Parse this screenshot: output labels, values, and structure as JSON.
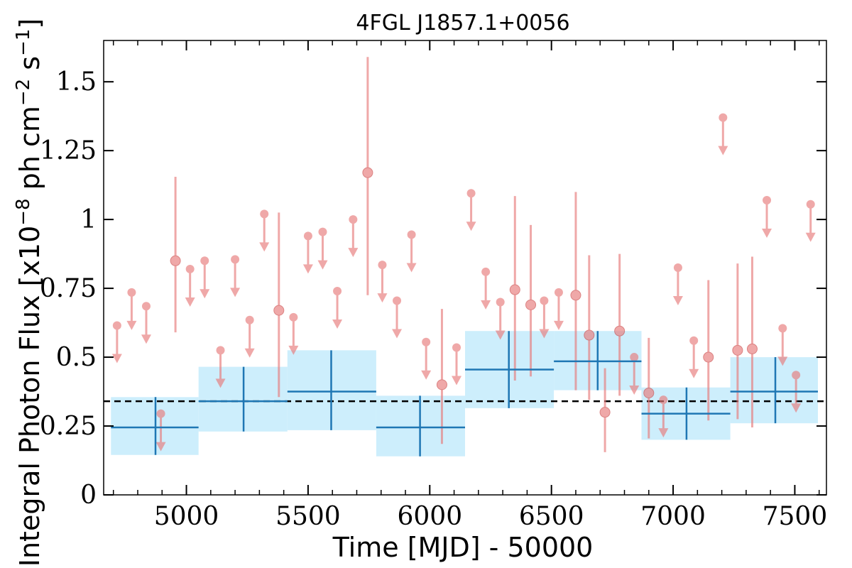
{
  "chart_data": {
    "type": "scatter",
    "title": "4FGL J1857.1+0056",
    "xlabel": "Time [MJD] - 50000",
    "ylabel_main": "Integral Photon Flux [x10",
    "ylabel_exp1": "−8",
    "ylabel_mid": " ph cm",
    "ylabel_exp2": "−2",
    "ylabel_mid2": " s",
    "ylabel_exp3": "−1",
    "ylabel_end": "]",
    "xlim": [
      4660,
      7630
    ],
    "ylim": [
      0,
      1.65
    ],
    "xticks": [
      5000,
      5500,
      6000,
      6500,
      7000,
      7500
    ],
    "xtick_labels": [
      "5000",
      "5500",
      "6000",
      "6500",
      "7000",
      "7500"
    ],
    "yticks": [
      0,
      0.25,
      0.5,
      0.75,
      1,
      1.25,
      1.5
    ],
    "ytick_labels": [
      "0",
      "0.25",
      "0.5",
      "0.75",
      "1",
      "1.25",
      "1.5"
    ],
    "mean_flux": 0.34,
    "colors": {
      "binned": "#1f77b4",
      "band": "#cdeefc",
      "points": "#e87b7b",
      "mean_line": "#000000"
    },
    "binned_series": [
      {
        "x": 4873,
        "x0": 4690,
        "x1": 5050,
        "y": 0.245,
        "ylo": 0.145,
        "yhi": 0.355,
        "band_lo": 0.145,
        "band_hi": 0.355
      },
      {
        "x": 5235,
        "x0": 5050,
        "x1": 5415,
        "y": 0.34,
        "ylo": 0.23,
        "yhi": 0.465,
        "band_lo": 0.23,
        "band_hi": 0.465
      },
      {
        "x": 5595,
        "x0": 5415,
        "x1": 5780,
        "y": 0.375,
        "ylo": 0.235,
        "yhi": 0.525,
        "band_lo": 0.235,
        "band_hi": 0.525
      },
      {
        "x": 5960,
        "x0": 5780,
        "x1": 6145,
        "y": 0.245,
        "ylo": 0.14,
        "yhi": 0.36,
        "band_lo": 0.14,
        "band_hi": 0.36
      },
      {
        "x": 6325,
        "x0": 6145,
        "x1": 6510,
        "y": 0.455,
        "ylo": 0.315,
        "yhi": 0.595,
        "band_lo": 0.315,
        "band_hi": 0.595
      },
      {
        "x": 6690,
        "x0": 6510,
        "x1": 6870,
        "y": 0.485,
        "ylo": 0.38,
        "yhi": 0.595,
        "band_lo": 0.38,
        "band_hi": 0.595
      },
      {
        "x": 7055,
        "x0": 6870,
        "x1": 7235,
        "y": 0.295,
        "ylo": 0.2,
        "yhi": 0.39,
        "band_lo": 0.2,
        "band_hi": 0.39
      },
      {
        "x": 7420,
        "x0": 7235,
        "x1": 7595,
        "y": 0.375,
        "ylo": 0.26,
        "yhi": 0.5,
        "band_lo": 0.26,
        "band_hi": 0.5
      }
    ],
    "upper_limits": [
      {
        "x": 4715,
        "y": 0.615
      },
      {
        "x": 4775,
        "y": 0.735
      },
      {
        "x": 4835,
        "y": 0.685
      },
      {
        "x": 4895,
        "y": 0.295
      },
      {
        "x": 5015,
        "y": 0.82
      },
      {
        "x": 5075,
        "y": 0.85
      },
      {
        "x": 5140,
        "y": 0.525
      },
      {
        "x": 5200,
        "y": 0.855
      },
      {
        "x": 5260,
        "y": 0.635
      },
      {
        "x": 5320,
        "y": 1.02
      },
      {
        "x": 5440,
        "y": 0.645
      },
      {
        "x": 5500,
        "y": 0.94
      },
      {
        "x": 5560,
        "y": 0.955
      },
      {
        "x": 5620,
        "y": 0.74
      },
      {
        "x": 5685,
        "y": 1.0
      },
      {
        "x": 5805,
        "y": 0.835
      },
      {
        "x": 5865,
        "y": 0.705
      },
      {
        "x": 5925,
        "y": 0.945
      },
      {
        "x": 5985,
        "y": 0.555
      },
      {
        "x": 6110,
        "y": 0.535
      },
      {
        "x": 6170,
        "y": 1.095
      },
      {
        "x": 6230,
        "y": 0.81
      },
      {
        "x": 6290,
        "y": 0.7
      },
      {
        "x": 6470,
        "y": 0.705
      },
      {
        "x": 6530,
        "y": 0.735
      },
      {
        "x": 6840,
        "y": 0.5
      },
      {
        "x": 6960,
        "y": 0.345
      },
      {
        "x": 7020,
        "y": 0.825
      },
      {
        "x": 7085,
        "y": 0.56
      },
      {
        "x": 7205,
        "y": 1.37
      },
      {
        "x": 7385,
        "y": 1.07
      },
      {
        "x": 7450,
        "y": 0.605
      },
      {
        "x": 7505,
        "y": 0.435
      },
      {
        "x": 7565,
        "y": 1.055
      }
    ],
    "detections": [
      {
        "x": 4955,
        "y": 0.85,
        "ylo": 0.59,
        "yhi": 1.155
      },
      {
        "x": 5380,
        "y": 0.67,
        "ylo": 0.355,
        "yhi": 1.025
      },
      {
        "x": 5745,
        "y": 1.17,
        "ylo": 0.725,
        "yhi": 1.59
      },
      {
        "x": 6050,
        "y": 0.4,
        "ylo": 0.185,
        "yhi": 0.675
      },
      {
        "x": 6350,
        "y": 0.745,
        "ylo": 0.415,
        "yhi": 1.085
      },
      {
        "x": 6415,
        "y": 0.69,
        "ylo": 0.43,
        "yhi": 0.98
      },
      {
        "x": 6600,
        "y": 0.725,
        "ylo": 0.38,
        "yhi": 1.1
      },
      {
        "x": 6655,
        "y": 0.58,
        "ylo": 0.345,
        "yhi": 0.87
      },
      {
        "x": 6720,
        "y": 0.3,
        "ylo": 0.155,
        "yhi": 0.46
      },
      {
        "x": 6780,
        "y": 0.595,
        "ylo": 0.36,
        "yhi": 0.875
      },
      {
        "x": 6900,
        "y": 0.37,
        "ylo": 0.205,
        "yhi": 0.57
      },
      {
        "x": 7145,
        "y": 0.5,
        "ylo": 0.27,
        "yhi": 0.78
      },
      {
        "x": 7265,
        "y": 0.525,
        "ylo": 0.275,
        "yhi": 0.84
      },
      {
        "x": 7325,
        "y": 0.53,
        "ylo": 0.245,
        "yhi": 0.865
      }
    ]
  }
}
